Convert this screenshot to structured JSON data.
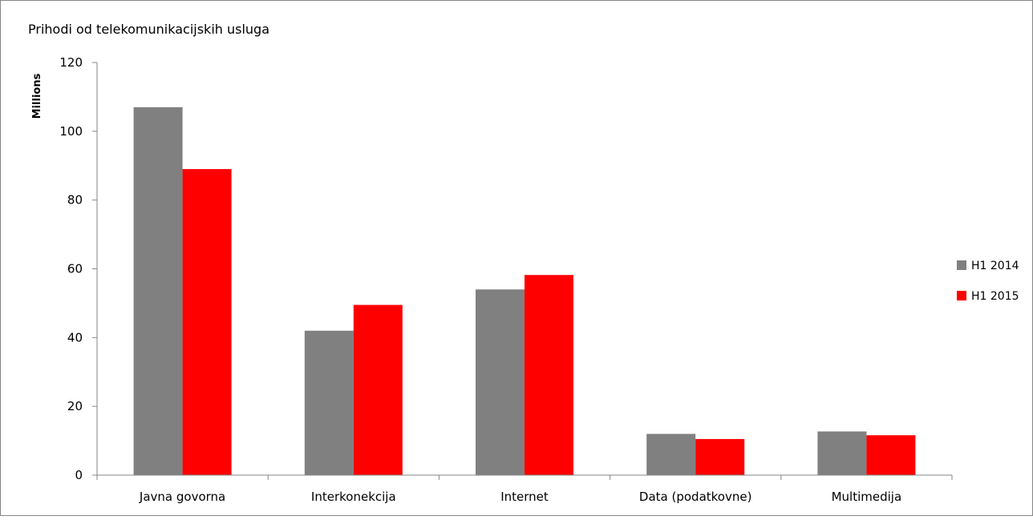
{
  "chart_data": {
    "type": "bar",
    "title": "Prihodi od telekomunikacijskih usluga",
    "xlabel": "",
    "ylabel": "Millions",
    "ylim": [
      0,
      120
    ],
    "yticks": [
      "0",
      "20",
      "40",
      "60",
      "80",
      "100",
      "120"
    ],
    "categories": [
      "Javna govorna",
      "Interkonekcija",
      "Internet",
      "Data (podatkovne)",
      "Multimedija"
    ],
    "series": [
      {
        "name": "H1 2014",
        "color": "#808080",
        "values": [
          107,
          42,
          54,
          12,
          12.7
        ]
      },
      {
        "name": "H1 2015",
        "color": "#ff0000",
        "values": [
          89,
          49.5,
          58.2,
          10.5,
          11.6
        ]
      }
    ],
    "grid": false,
    "legend_position": "right"
  }
}
